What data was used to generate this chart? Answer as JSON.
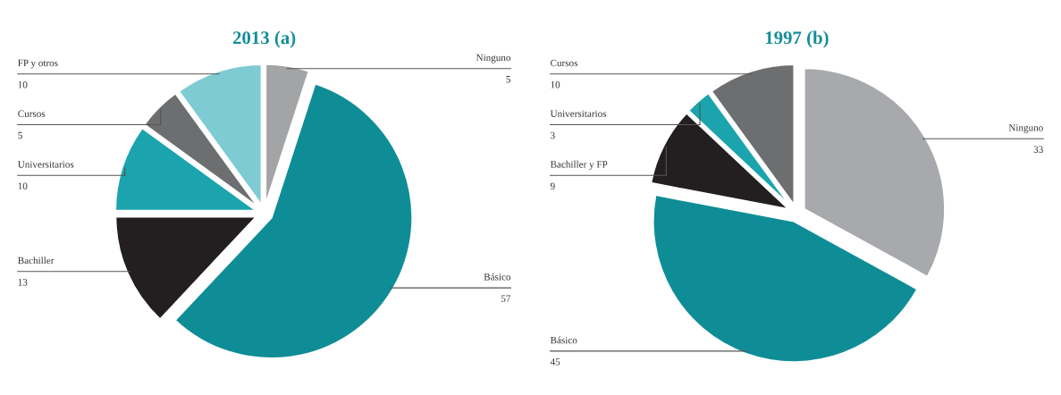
{
  "chart_data": [
    {
      "type": "pie",
      "title": "2013 (a)",
      "categories": [
        "Ninguno",
        "Básico",
        "Bachiller",
        "Universitarios",
        "Cursos",
        "FP y otros"
      ],
      "values": [
        5,
        57,
        13,
        10,
        5,
        10
      ],
      "colors": [
        "#a3a4a6",
        "#0f8d96",
        "#231f20",
        "#1ba4ae",
        "#6d6e70",
        "#7ecbd4"
      ],
      "data_labels": true,
      "legend": false
    },
    {
      "type": "pie",
      "title": "1997 (b)",
      "categories": [
        "Ninguno",
        "Básico",
        "Bachiller y FP",
        "Universitarios",
        "Cursos"
      ],
      "values": [
        33,
        45,
        9,
        3,
        10
      ],
      "colors": [
        "#a7a9ac",
        "#0f8d96",
        "#231f20",
        "#1ba4ae",
        "#6d6e70"
      ],
      "data_labels": true,
      "legend": false
    }
  ]
}
